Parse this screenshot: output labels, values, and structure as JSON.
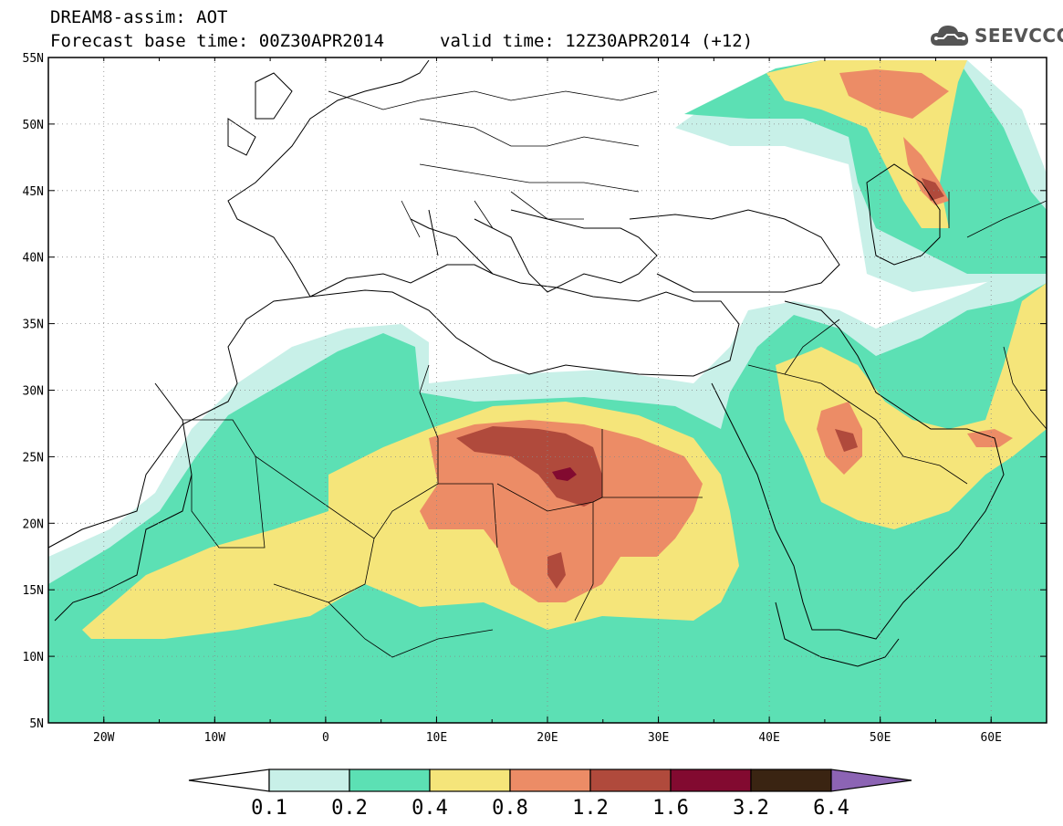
{
  "header": {
    "line1": "DREAM8-assim: AOT",
    "line2": "Forecast base time: 00Z30APR2014",
    "valid": "valid time: 12Z30APR2014 (+12)"
  },
  "logo": {
    "text": "SEEVCCC",
    "icon": "cloud-icon"
  },
  "map": {
    "lon_range": [
      -25,
      65
    ],
    "lat_range": [
      5,
      55
    ],
    "lon_ticks": [
      "20W",
      "10W",
      "0",
      "10E",
      "20E",
      "30E",
      "40E",
      "50E",
      "60E"
    ],
    "lat_ticks": [
      "5N",
      "10N",
      "15N",
      "20N",
      "25N",
      "30N",
      "35N",
      "40N",
      "45N",
      "50N",
      "55N"
    ],
    "grid": "dotted"
  },
  "legend": {
    "labels": [
      "0.1",
      "0.2",
      "0.4",
      "0.8",
      "1.2",
      "1.6",
      "3.2",
      "6.4"
    ],
    "colors": [
      "#ffffff",
      "#c8f0e8",
      "#5ce0b4",
      "#f5e57a",
      "#ec8c66",
      "#b04a3c",
      "#820a30",
      "#3a2412",
      "#8c64b4"
    ]
  }
}
